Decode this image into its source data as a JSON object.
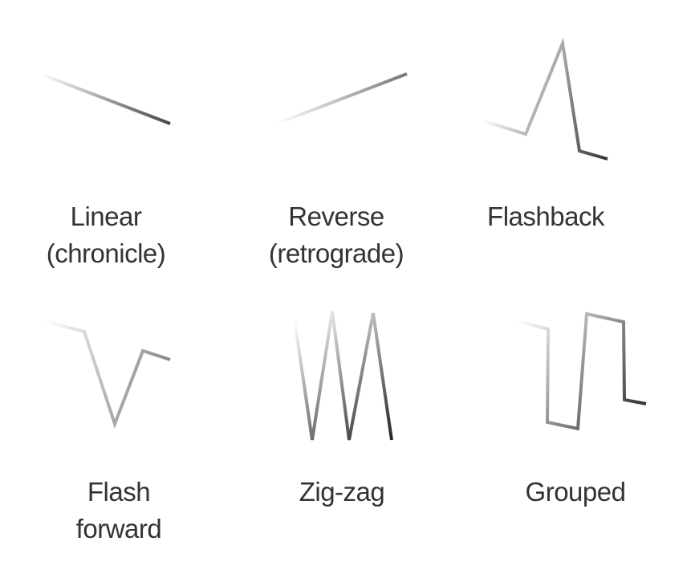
{
  "panels": [
    {
      "id": "linear",
      "lines": [
        "Linear",
        "(chronicle)"
      ]
    },
    {
      "id": "reverse",
      "lines": [
        "Reverse",
        "(retrograde)"
      ]
    },
    {
      "id": "flashback",
      "lines": [
        "Flashback"
      ]
    },
    {
      "id": "flash-forward",
      "lines": [
        "Flash",
        "forward"
      ]
    },
    {
      "id": "zig-zag",
      "lines": [
        "Zig-zag"
      ]
    },
    {
      "id": "grouped",
      "lines": [
        "Grouped"
      ]
    }
  ],
  "colors": {
    "line_start": "#ffffff",
    "line_end": "#333333",
    "text": "#333333",
    "background": "#ffffff"
  }
}
